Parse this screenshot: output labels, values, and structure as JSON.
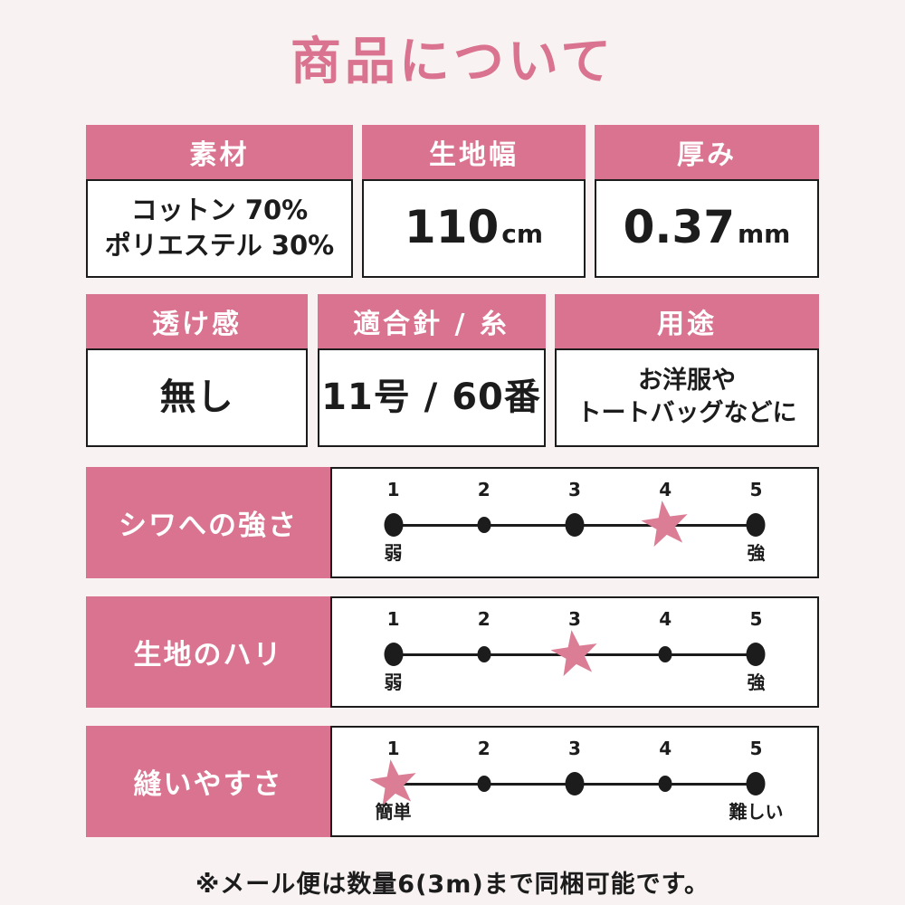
{
  "page": {
    "title": "商品について",
    "note": "※メール便は数量6(3m)まで同梱可能です。"
  },
  "colors": {
    "accent": "#d9738f",
    "star": "#db7d95",
    "background": "#f8f3f2",
    "border": "#1c1c1c",
    "text": "#1c1c1c",
    "card_background": "#ffffff",
    "header_text": "#ffffff"
  },
  "spec_cards": [
    {
      "label": "素材",
      "lines": [
        "コットン 70%",
        "ポリエステル 30%"
      ]
    },
    {
      "label": "生地幅",
      "value": "110",
      "unit": "cm"
    },
    {
      "label": "厚み",
      "value": "0.37",
      "unit": "mm"
    },
    {
      "label": "透け感",
      "value": "無し"
    },
    {
      "label": "適合針 / 糸",
      "value": "11号 / 60番"
    },
    {
      "label": "用途",
      "lines": [
        "お洋服や",
        "トートバッグなどに"
      ]
    }
  ],
  "rating_scales": {
    "ticks": [
      "1",
      "2",
      "3",
      "4",
      "5"
    ],
    "rows": [
      {
        "label": "シワへの強さ",
        "rating": 4,
        "min_label": "弱",
        "max_label": "強"
      },
      {
        "label": "生地のハリ",
        "rating": 3,
        "min_label": "弱",
        "max_label": "強"
      },
      {
        "label": "縫いやすさ",
        "rating": 1,
        "min_label": "簡単",
        "max_label": "難しい"
      }
    ]
  }
}
